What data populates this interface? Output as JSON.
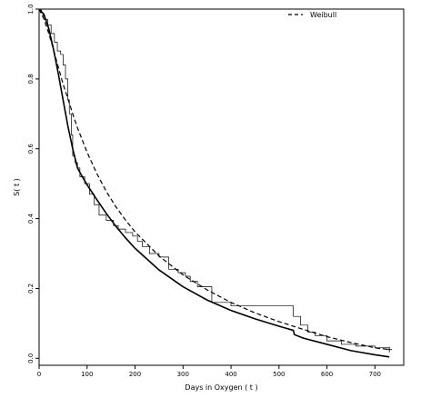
{
  "chart_data": {
    "type": "line",
    "title": "",
    "xlabel": "Days in Oxygen ( t )",
    "ylabel": "S( t )",
    "xlim": [
      0,
      760
    ],
    "ylim": [
      -0.02,
      1.0
    ],
    "x_ticks": [
      0,
      100,
      200,
      300,
      400,
      500,
      600,
      700
    ],
    "y_ticks": [
      0.0,
      0.2,
      0.4,
      0.6,
      0.8,
      1.0
    ],
    "x_tick_labels": [
      "0",
      "100",
      "200",
      "300",
      "400",
      "500",
      "600",
      "700"
    ],
    "y_tick_labels": [
      "0.0",
      "0.2",
      "0.4",
      "0.6",
      "0.8",
      "1.0"
    ],
    "grid": false,
    "legend": {
      "position": "top-right",
      "entries": [
        {
          "label": "Weibull",
          "style": "dashed"
        }
      ]
    },
    "series": [
      {
        "name": "Weibull",
        "style": "dashed",
        "x": [
          0,
          10,
          20,
          30,
          40,
          50,
          60,
          70,
          80,
          100,
          120,
          140,
          160,
          180,
          200,
          250,
          300,
          350,
          400,
          450,
          500,
          550,
          600,
          650,
          700,
          730
        ],
        "y": [
          1.0,
          0.972,
          0.931,
          0.884,
          0.834,
          0.785,
          0.744,
          0.7,
          0.66,
          0.59,
          0.53,
          0.478,
          0.434,
          0.396,
          0.362,
          0.293,
          0.239,
          0.196,
          0.16,
          0.13,
          0.105,
          0.083,
          0.062,
          0.045,
          0.03,
          0.025
        ]
      },
      {
        "name": "",
        "style": "solid-bold",
        "x": [
          0,
          10,
          20,
          30,
          40,
          50,
          60,
          70,
          80,
          90,
          100,
          120,
          140,
          160,
          180,
          200,
          250,
          300,
          350,
          400,
          450,
          500,
          530,
          532,
          550,
          600,
          650,
          700,
          730
        ],
        "y": [
          1.0,
          0.985,
          0.945,
          0.885,
          0.815,
          0.74,
          0.665,
          0.6,
          0.545,
          0.52,
          0.497,
          0.455,
          0.415,
          0.378,
          0.345,
          0.315,
          0.253,
          0.205,
          0.167,
          0.137,
          0.113,
          0.092,
          0.08,
          0.068,
          0.058,
          0.04,
          0.022,
          0.01,
          0.004
        ]
      },
      {
        "name": "",
        "style": "step",
        "x": [
          0,
          5,
          8,
          12,
          18,
          25,
          32,
          38,
          45,
          50,
          55,
          60,
          63,
          67,
          70,
          75,
          80,
          85,
          95,
          105,
          115,
          125,
          140,
          155,
          165,
          180,
          195,
          205,
          215,
          230,
          250,
          270,
          290,
          305,
          315,
          330,
          360,
          400,
          450,
          500,
          530,
          545,
          560,
          575,
          600,
          630,
          660,
          700,
          730
        ],
        "y": [
          1.0,
          0.99,
          0.98,
          0.97,
          0.955,
          0.93,
          0.905,
          0.88,
          0.87,
          0.84,
          0.8,
          0.74,
          0.7,
          0.64,
          0.58,
          0.56,
          0.545,
          0.52,
          0.5,
          0.47,
          0.44,
          0.41,
          0.395,
          0.38,
          0.37,
          0.36,
          0.35,
          0.335,
          0.32,
          0.3,
          0.29,
          0.255,
          0.245,
          0.235,
          0.22,
          0.205,
          0.16,
          0.15,
          0.15,
          0.15,
          0.12,
          0.095,
          0.075,
          0.065,
          0.05,
          0.04,
          0.035,
          0.03,
          0.025
        ]
      }
    ]
  }
}
